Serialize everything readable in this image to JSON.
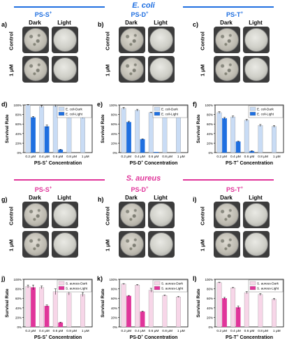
{
  "sections": {
    "ecoli_title": "E. coli",
    "saureus_title": "S. aureus",
    "ecoli_color": "#1f6fe0",
    "saureus_color": "#e0359a"
  },
  "strains": {
    "ps_s": {
      "text": "PS-S",
      "sup": "+"
    },
    "ps_d": {
      "text": "PS-D",
      "sup": "+"
    },
    "ps_t": {
      "text": "PS-T",
      "sup": "+"
    }
  },
  "photo_panels": {
    "col_dark": "Dark",
    "col_light": "Light",
    "row_control": "Control",
    "row_dose": "1 μM"
  },
  "panel_letters": [
    "a)",
    "b)",
    "c)",
    "d)",
    "e)",
    "f)",
    "g)",
    "h)",
    "i)",
    "j)",
    "k)",
    "l)"
  ],
  "colors": {
    "ecoli_dark": "#c9dcf5",
    "ecoli_light": "#1f6fe0",
    "saureus_dark": "#f7d6e8",
    "saureus_light": "#e0359a"
  },
  "chart_data": [
    {
      "type": "bar",
      "panel": "d)",
      "categories": [
        "0.2 μM",
        "0.4 μM",
        "0.6 μM",
        "0.8 μM",
        "1 μM"
      ],
      "series": [
        {
          "name": "E. coli-Dark",
          "values": [
            100,
            97,
            98,
            75,
            74
          ],
          "errors": [
            1,
            2,
            2,
            2,
            2
          ]
        },
        {
          "name": "E. coli-Light",
          "values": [
            74,
            55,
            6,
            0,
            0
          ],
          "errors": [
            2,
            3,
            1,
            0,
            0
          ]
        }
      ],
      "ylabel": "Survival Rate",
      "xlabel": {
        "text": "PS-S",
        "sup": "+",
        "after": " Concentration"
      },
      "ylim": [
        0,
        100
      ],
      "yticks": [
        "0%",
        "20%",
        "40%",
        "60%",
        "80%",
        "100%"
      ],
      "legend": "top-right"
    },
    {
      "type": "bar",
      "panel": "e)",
      "categories": [
        "0.2 μM",
        "0.4 μM",
        "0.6 μM",
        "0.8 μM",
        "1 μM"
      ],
      "series": [
        {
          "name": "E. coli-Dark",
          "values": [
            93,
            89,
            84,
            83,
            76
          ],
          "errors": [
            2,
            2,
            1,
            2,
            1
          ]
        },
        {
          "name": "E. coli-Light",
          "values": [
            64,
            28,
            1,
            0,
            0
          ],
          "errors": [
            2,
            1,
            0,
            0,
            0
          ]
        }
      ],
      "ylabel": "Survival Rate",
      "xlabel": {
        "text": "PS-D",
        "sup": "+",
        "after": " Concentration"
      },
      "ylim": [
        0,
        100
      ],
      "yticks": [
        "0%",
        "20%",
        "40%",
        "60%",
        "80%",
        "100%"
      ],
      "legend": "top-right"
    },
    {
      "type": "bar",
      "panel": "f)",
      "categories": [
        "0.2 μM",
        "0.4 μM",
        "0.6 μM",
        "0.8 μM",
        "1 μM"
      ],
      "series": [
        {
          "name": "E. coli-Dark",
          "values": [
            84,
            75,
            68,
            57,
            55
          ],
          "errors": [
            2,
            2,
            2,
            2,
            2
          ]
        },
        {
          "name": "E. coli-Light",
          "values": [
            72,
            23,
            3,
            0,
            0
          ],
          "errors": [
            2,
            1,
            1,
            0,
            0
          ]
        }
      ],
      "ylabel": "Survival Rate",
      "xlabel": {
        "text": "PS-T",
        "sup": "+",
        "after": " Concentration"
      },
      "ylim": [
        0,
        100
      ],
      "yticks": [
        "0%",
        "20%",
        "40%",
        "60%",
        "80%",
        "100%"
      ],
      "legend": "top-right"
    },
    {
      "type": "bar",
      "panel": "j)",
      "categories": [
        "0.2 μM",
        "0.4 μM",
        "0.6 μM",
        "0.8 μM",
        "1 μM"
      ],
      "series": [
        {
          "name": "S. aureus-Dark",
          "values": [
            85,
            83,
            74,
            71,
            68
          ],
          "errors": [
            3,
            3,
            6,
            4,
            4
          ]
        },
        {
          "name": "S. aureus-Light",
          "values": [
            83,
            44,
            9,
            0,
            0
          ],
          "errors": [
            5,
            2,
            1,
            0,
            0
          ]
        }
      ],
      "ylabel": "Survival Rate",
      "xlabel": {
        "text": "PS-S",
        "sup": "+",
        "after": " Concentration"
      },
      "ylim": [
        0,
        100
      ],
      "yticks": [
        "0%",
        "20%",
        "40%",
        "60%",
        "80%",
        "100%"
      ],
      "legend": "top-right"
    },
    {
      "type": "bar",
      "panel": "k)",
      "categories": [
        "0.2 μM",
        "0.4 μM",
        "0.6 μM",
        "0.8 μM",
        "1 μM"
      ],
      "series": [
        {
          "name": "S. aureus-Dark",
          "values": [
            90,
            88,
            77,
            66,
            63
          ],
          "errors": [
            1,
            1,
            4,
            1,
            1
          ]
        },
        {
          "name": "S. aureus-Light",
          "values": [
            65,
            32,
            0,
            0,
            0
          ],
          "errors": [
            1,
            1,
            0,
            0,
            0
          ]
        }
      ],
      "ylabel": "Survival Rate",
      "xlabel": {
        "text": "PS-D",
        "sup": "+",
        "after": " Concentration"
      },
      "ylim": [
        0,
        100
      ],
      "yticks": [
        "0%",
        "20%",
        "40%",
        "60%",
        "80%",
        "100%"
      ],
      "legend": "top-right"
    },
    {
      "type": "bar",
      "panel": "l)",
      "categories": [
        "0.2 μM",
        "0.4 μM",
        "0.6 μM",
        "0.8 μM",
        "1 μM"
      ],
      "series": [
        {
          "name": "S. aureus-Dark",
          "values": [
            93,
            82,
            72,
            68,
            58
          ],
          "errors": [
            1,
            1,
            2,
            2,
            2
          ]
        },
        {
          "name": "S. aureus-Light",
          "values": [
            60,
            41,
            0,
            0,
            0
          ],
          "errors": [
            2,
            3,
            0,
            0,
            0
          ]
        }
      ],
      "ylabel": "Survival Rate",
      "xlabel": {
        "text": "PS-T",
        "sup": "+",
        "after": " Concentration"
      },
      "ylim": [
        0,
        100
      ],
      "yticks": [
        "0%",
        "20%",
        "40%",
        "60%",
        "80%",
        "100%"
      ],
      "legend": "top-right"
    }
  ]
}
